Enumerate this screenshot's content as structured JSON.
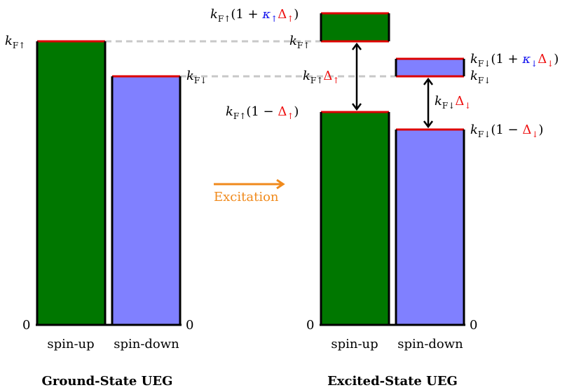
{
  "colors": {
    "spin_up_fill": "#007700",
    "spin_down_fill": "#8080ff",
    "fermi_level_line": "#dd0000",
    "guide_line": "#c8c8c8",
    "arrow": "#000000",
    "excitation_arrow": "#f08a1c",
    "kappa_color": "#1010ee",
    "delta_color": "#ee1010"
  },
  "ground_state": {
    "title": "Ground-State UEG",
    "spin_up_label": "spin-up",
    "spin_down_label": "spin-down",
    "zero_left": "0",
    "zero_right": "0",
    "kf_up": {
      "base": "k",
      "sub": "F↑"
    },
    "kf_down": {
      "base": "k",
      "sub": "F↓"
    }
  },
  "excitation": {
    "label": "Excitation"
  },
  "excited_state": {
    "title": "Excited-State UEG",
    "spin_up_label": "spin-up",
    "spin_down_label": "spin-down",
    "zero_left": "0",
    "zero_right": "0",
    "up_top": {
      "base": "k",
      "sub": "F↑",
      "open": "(1 + ",
      "kappa": "κ",
      "kappa_sub": "↑",
      "delta": "Δ",
      "delta_sub": "↑",
      "close": ")"
    },
    "up_level": {
      "base": "k",
      "sub": "F↑"
    },
    "up_gap": {
      "base": "k",
      "sub": "F↑",
      "delta": "Δ",
      "delta_sub": "↑"
    },
    "up_bottom": {
      "base": "k",
      "sub": "F↑",
      "open": "(1 − ",
      "delta": "Δ",
      "delta_sub": "↑",
      "close": ")"
    },
    "down_top": {
      "base": "k",
      "sub": "F↓",
      "open": "(1 + ",
      "kappa": "κ",
      "kappa_sub": "↓",
      "delta": "Δ",
      "delta_sub": "↓",
      "close": ")"
    },
    "down_level": {
      "base": "k",
      "sub": "F↓"
    },
    "down_gap": {
      "base": "k",
      "sub": "F↓",
      "delta": "Δ",
      "delta_sub": "↓"
    },
    "down_bottom": {
      "base": "k",
      "sub": "F↓",
      "open": "(1 − ",
      "delta": "Δ",
      "delta_sub": "↓",
      "close": ")"
    }
  }
}
